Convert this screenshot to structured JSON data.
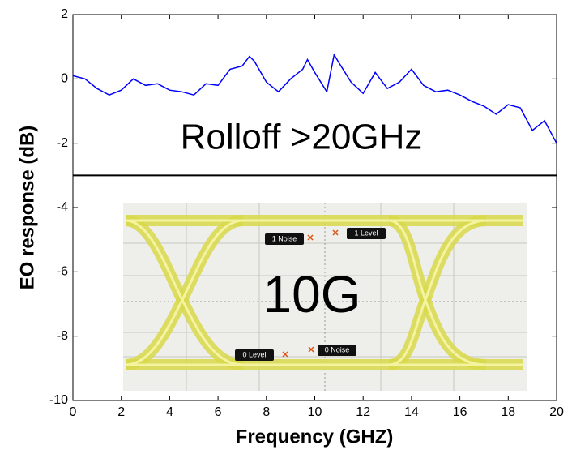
{
  "chart_data": {
    "type": "line",
    "x_label": "Frequency (GHZ)",
    "y_label": "EO response (dB)",
    "annotation": "Rolloff >20GHz",
    "inset_label": "10G",
    "eye_labels": [
      "1 Noise",
      "1 Level",
      "0 Level",
      "0 Noise"
    ],
    "x": [
      0,
      0.5,
      1,
      1.5,
      2,
      2.5,
      3,
      3.5,
      4,
      4.5,
      5,
      5.5,
      6,
      6.5,
      7,
      7.3,
      7.5,
      8,
      8.5,
      9,
      9.5,
      9.7,
      10,
      10.5,
      10.8,
      11,
      11.5,
      12,
      12.5,
      13,
      13.5,
      14,
      14.5,
      15,
      15.5,
      16,
      16.5,
      17,
      17.5,
      18,
      18.5,
      19,
      19.5,
      20
    ],
    "series": [
      {
        "color": "#0000ff",
        "values": [
          0.1,
          0.0,
          -0.3,
          -0.5,
          -0.35,
          0.0,
          -0.2,
          -0.15,
          -0.35,
          -0.4,
          -0.5,
          -0.15,
          -0.2,
          0.3,
          0.4,
          0.7,
          0.55,
          -0.1,
          -0.4,
          0.0,
          0.3,
          0.6,
          0.2,
          -0.4,
          0.75,
          0.5,
          -0.1,
          -0.45,
          0.2,
          -0.3,
          -0.1,
          0.3,
          -0.2,
          -0.4,
          -0.35,
          -0.5,
          -0.7,
          -0.85,
          -1.1,
          -0.8,
          -0.9,
          -1.6,
          -1.3,
          -2.0
        ]
      }
    ],
    "hline": -3,
    "xlim": [
      0,
      20
    ],
    "xticks": [
      0,
      2,
      4,
      6,
      8,
      10,
      12,
      14,
      16,
      18,
      20
    ],
    "ylim": [
      -10,
      2
    ],
    "yticks": [
      -10,
      -8,
      -6,
      -4,
      -2,
      0,
      2
    ]
  }
}
